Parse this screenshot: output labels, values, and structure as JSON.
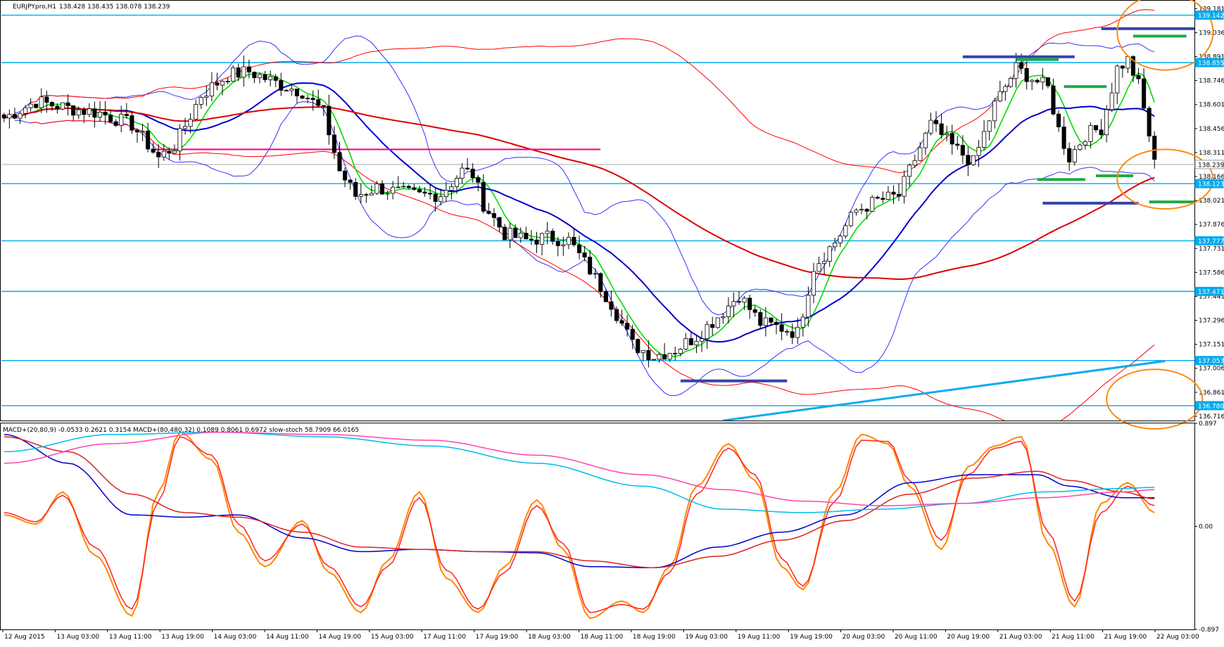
{
  "header": {
    "symbol_timeframe": "EURJPYpro,H1",
    "ohlc": "138.428 138.435 138.078 138.239"
  },
  "subwindow_header": {
    "text": "MACD+(20,80,9) -0.0533 0.2621 0.3154  MACD+(80,480,32) 0.1089 0.8061 0.6972  slow-stoch 58.7909 66.0165"
  },
  "colors": {
    "background": "#ffffff",
    "bull_candle": "#ffffff",
    "bear_candle": "#000000",
    "sma_fast": "#00dd00",
    "sma_mid": "#0000cc",
    "sma_slow": "#dd0000",
    "bollinger_inner": "#3333ff",
    "bollinger_outer": "#ff0000",
    "horizontal_level": "#00aaee",
    "pink_level": "#ff0088",
    "dark_blue_marker": "#3344aa",
    "green_marker": "#22aa44",
    "trendline": "#11aaee",
    "annotation_ellipse": "#ff8811",
    "current_price_line": "#aaaaaa",
    "label_box": "#00aaee"
  },
  "chart_data": [
    {
      "type": "candlestick",
      "title": "EURJPYpro,H1",
      "price_axis_ticks": [
        "139.181",
        "139.036",
        "138.891",
        "138.746",
        "138.601",
        "138.456",
        "138.311",
        "138.166",
        "138.021",
        "137.876",
        "137.731",
        "137.586",
        "137.441",
        "137.296",
        "137.151",
        "137.006",
        "136.861",
        "136.716"
      ],
      "ylim": [
        136.69,
        139.225
      ],
      "price_labels": [
        {
          "value": 139.142,
          "text": "139.142"
        },
        {
          "value": 138.855,
          "text": "138.855"
        },
        {
          "value": 138.239,
          "text": "138.239"
        },
        {
          "value": 138.123,
          "text": "138.123"
        },
        {
          "value": 137.777,
          "text": "137.777"
        },
        {
          "value": 137.471,
          "text": "137.471"
        },
        {
          "value": 137.053,
          "text": "137.053"
        },
        {
          "value": 136.78,
          "text": "136.780"
        }
      ],
      "horizontal_levels": [
        139.142,
        138.855,
        138.123,
        137.777,
        137.471,
        137.053,
        136.78
      ],
      "current_price": 138.239,
      "pink_level": {
        "value": 138.33,
        "from_bar": 28,
        "to_bar": 112
      },
      "markers": [
        {
          "color": "dark_blue",
          "value": 138.89,
          "from_bar": 180,
          "to_bar": 201
        },
        {
          "color": "dark_blue",
          "value": 139.06,
          "from_bar": 206,
          "to_bar": 227
        },
        {
          "color": "dark_blue",
          "value": 138.005,
          "from_bar": 195,
          "to_bar": 213
        },
        {
          "color": "dark_blue",
          "value": 136.93,
          "from_bar": 127,
          "to_bar": 147
        },
        {
          "color": "green",
          "value": 138.873,
          "from_bar": 190,
          "to_bar": 198
        },
        {
          "color": "green",
          "value": 138.71,
          "from_bar": 199,
          "to_bar": 207
        },
        {
          "color": "green",
          "value": 139.015,
          "from_bar": 212,
          "to_bar": 222
        },
        {
          "color": "green",
          "value": 138.148,
          "from_bar": 194,
          "to_bar": 203
        },
        {
          "color": "green",
          "value": 138.17,
          "from_bar": 205,
          "to_bar": 212
        },
        {
          "color": "green",
          "value": 138.012,
          "from_bar": 215,
          "to_bar": 225
        }
      ],
      "trendline": {
        "from": {
          "bar": 135,
          "value": 136.69
        },
        "to": {
          "bar": 218,
          "value": 137.05
        }
      },
      "annotations": [
        {
          "shape": "ellipse",
          "center_bar": 218,
          "center_value": 139.04,
          "rx_bars": 9,
          "ry_value": 0.23
        },
        {
          "shape": "ellipse",
          "center_bar": 218,
          "center_value": 138.15,
          "rx_bars": 9,
          "ry_value": 0.18
        },
        {
          "shape": "ellipse",
          "center_bar": 216,
          "center_value": 136.82,
          "rx_bars": 9,
          "ry_value": 0.18
        }
      ],
      "x_tick_labels": [
        "12 Aug 2015",
        "13 Aug 03:00",
        "13 Aug 11:00",
        "13 Aug 19:00",
        "14 Aug 03:00",
        "14 Aug 11:00",
        "14 Aug 19:00",
        "15 Aug 03:00",
        "17 Aug 11:00",
        "17 Aug 19:00",
        "18 Aug 03:00",
        "18 Aug 11:00",
        "18 Aug 19:00",
        "19 Aug 03:00",
        "19 Aug 11:00",
        "19 Aug 19:00",
        "20 Aug 03:00",
        "20 Aug 11:00",
        "20 Aug 19:00",
        "21 Aug 03:00",
        "21 Aug 11:00",
        "21 Aug 19:00",
        "22 Aug 03:00"
      ],
      "path_points": [
        [
          0,
          138.52
        ],
        [
          6,
          138.62
        ],
        [
          12,
          138.58
        ],
        [
          18,
          138.55
        ],
        [
          24,
          138.48
        ],
        [
          29,
          138.28
        ],
        [
          32,
          138.35
        ],
        [
          37,
          138.66
        ],
        [
          42,
          138.78
        ],
        [
          46,
          138.8
        ],
        [
          52,
          138.72
        ],
        [
          56,
          138.68
        ],
        [
          60,
          138.55
        ],
        [
          63,
          138.2
        ],
        [
          66,
          138.05
        ],
        [
          70,
          138.1
        ],
        [
          74,
          138.07
        ],
        [
          78,
          138.05
        ],
        [
          82,
          138.06
        ],
        [
          86,
          138.2
        ],
        [
          88,
          138.18
        ],
        [
          90,
          138.0
        ],
        [
          94,
          137.82
        ],
        [
          98,
          137.78
        ],
        [
          102,
          137.8
        ],
        [
          106,
          137.78
        ],
        [
          110,
          137.6
        ],
        [
          114,
          137.4
        ],
        [
          118,
          137.15
        ],
        [
          122,
          137.08
        ],
        [
          126,
          137.12
        ],
        [
          130,
          137.2
        ],
        [
          134,
          137.32
        ],
        [
          138,
          137.45
        ],
        [
          142,
          137.28
        ],
        [
          146,
          137.25
        ],
        [
          149,
          137.22
        ],
        [
          152,
          137.62
        ],
        [
          156,
          137.77
        ],
        [
          160,
          137.96
        ],
        [
          164,
          138.02
        ],
        [
          168,
          138.05
        ],
        [
          170,
          138.2
        ],
        [
          174,
          138.48
        ],
        [
          178,
          138.35
        ],
        [
          182,
          138.25
        ],
        [
          186,
          138.6
        ],
        [
          190,
          138.82
        ],
        [
          194,
          138.74
        ],
        [
          196,
          138.7
        ],
        [
          198,
          138.45
        ],
        [
          200,
          138.28
        ],
        [
          203,
          138.42
        ],
        [
          206,
          138.46
        ],
        [
          209,
          138.82
        ],
        [
          211,
          138.87
        ],
        [
          213,
          138.72
        ],
        [
          215,
          138.42
        ],
        [
          216,
          138.24
        ]
      ]
    },
    {
      "type": "line",
      "title": "MACD+(20,80,9) / MACD+(80,480,32) / slow-stoch",
      "axis_ticks": [
        "0.897",
        "0.00",
        "-0.897"
      ],
      "ylim": [
        -0.897,
        0.897
      ],
      "series": [
        {
          "name": "slow-stoch main",
          "color": "#ff8800",
          "x": [
            0,
            6,
            11,
            17,
            24,
            29,
            33,
            39,
            44,
            49,
            56,
            61,
            67,
            72,
            78,
            83,
            89,
            94,
            100,
            105,
            110,
            116,
            120,
            125,
            130,
            136,
            141,
            146,
            150,
            156,
            161,
            166,
            170,
            176,
            181,
            186,
            191,
            196,
            201,
            206,
            211,
            216
          ],
          "values": [
            0.1,
            0.02,
            0.3,
            -0.25,
            -0.78,
            0.3,
            0.82,
            0.58,
            -0.05,
            -0.35,
            0.05,
            -0.4,
            -0.75,
            -0.3,
            0.3,
            -0.45,
            -0.75,
            -0.35,
            0.23,
            -0.2,
            -0.8,
            -0.65,
            -0.75,
            -0.35,
            0.35,
            0.72,
            0.4,
            -0.35,
            -0.55,
            0.3,
            0.8,
            0.72,
            0.35,
            -0.2,
            0.52,
            0.7,
            0.78,
            -0.15,
            -0.7,
            0.2,
            0.38,
            0.12
          ]
        },
        {
          "name": "slow-stoch signal",
          "color": "#ff2222",
          "x": [
            0,
            6,
            11,
            17,
            24,
            29,
            33,
            39,
            44,
            49,
            56,
            61,
            67,
            72,
            78,
            83,
            89,
            94,
            100,
            105,
            110,
            116,
            120,
            125,
            130,
            136,
            141,
            146,
            150,
            156,
            161,
            166,
            170,
            176,
            181,
            186,
            191,
            196,
            201,
            206,
            211,
            216
          ],
          "values": [
            0.12,
            0.04,
            0.27,
            -0.18,
            -0.72,
            0.22,
            0.78,
            0.62,
            0.02,
            -0.3,
            0.02,
            -0.35,
            -0.7,
            -0.35,
            0.25,
            -0.38,
            -0.72,
            -0.4,
            0.18,
            -0.15,
            -0.75,
            -0.68,
            -0.72,
            -0.4,
            0.28,
            0.68,
            0.45,
            -0.28,
            -0.52,
            0.22,
            0.75,
            0.74,
            0.4,
            -0.12,
            0.45,
            0.68,
            0.74,
            -0.05,
            -0.65,
            0.12,
            0.35,
            0.18
          ]
        },
        {
          "name": "MACD fast main",
          "color": "#0000cc",
          "x": [
            0,
            12,
            24,
            34,
            44,
            56,
            67,
            78,
            90,
            100,
            110,
            122,
            134,
            146,
            158,
            170,
            182,
            194,
            200,
            210,
            216
          ],
          "values": [
            0.8,
            0.55,
            0.1,
            0.08,
            0.1,
            -0.1,
            -0.22,
            -0.2,
            -0.22,
            -0.23,
            -0.35,
            -0.36,
            -0.18,
            -0.05,
            0.1,
            0.38,
            0.45,
            0.45,
            0.35,
            0.25,
            0.25
          ]
        },
        {
          "name": "MACD fast signal",
          "color": "#dd2222",
          "x": [
            0,
            12,
            24,
            34,
            44,
            56,
            67,
            78,
            90,
            100,
            110,
            122,
            134,
            146,
            158,
            170,
            182,
            194,
            200,
            210,
            216
          ],
          "values": [
            0.78,
            0.65,
            0.28,
            0.12,
            0.08,
            -0.05,
            -0.18,
            -0.2,
            -0.22,
            -0.22,
            -0.3,
            -0.36,
            -0.26,
            -0.12,
            0.05,
            0.28,
            0.42,
            0.48,
            0.4,
            0.3,
            0.24
          ]
        },
        {
          "name": "MACD slow main",
          "color": "#00bbee",
          "x": [
            0,
            20,
            40,
            60,
            80,
            100,
            120,
            135,
            150,
            165,
            180,
            195,
            210,
            216
          ],
          "values": [
            0.65,
            0.8,
            0.82,
            0.78,
            0.7,
            0.55,
            0.35,
            0.15,
            0.12,
            0.15,
            0.2,
            0.3,
            0.33,
            0.34
          ]
        },
        {
          "name": "MACD slow signal",
          "color": "#ff44aa",
          "x": [
            0,
            20,
            40,
            60,
            80,
            100,
            120,
            135,
            150,
            165,
            180,
            195,
            210,
            216
          ],
          "values": [
            0.55,
            0.72,
            0.82,
            0.8,
            0.75,
            0.62,
            0.45,
            0.32,
            0.22,
            0.18,
            0.2,
            0.25,
            0.3,
            0.32
          ]
        }
      ]
    }
  ]
}
